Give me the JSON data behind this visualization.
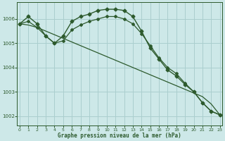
{
  "title": "Graphe pression niveau de la mer (hPa)",
  "background_color": "#cde8e8",
  "grid_color": "#aacece",
  "line_color": "#2d5a2d",
  "x_ticks": [
    0,
    1,
    2,
    3,
    4,
    5,
    6,
    7,
    8,
    9,
    10,
    11,
    12,
    13,
    14,
    15,
    16,
    17,
    18,
    19,
    20,
    21,
    22,
    23
  ],
  "y_ticks": [
    1002,
    1003,
    1004,
    1005,
    1006
  ],
  "ylim": [
    1001.6,
    1006.7
  ],
  "xlim": [
    -0.3,
    23.3
  ],
  "series": [
    {
      "x": [
        0,
        1,
        2,
        3,
        4,
        5,
        6,
        7,
        8,
        9,
        10,
        11,
        12,
        13,
        14,
        15,
        16,
        17,
        18,
        19,
        20,
        21,
        22,
        23
      ],
      "y": [
        1005.8,
        1006.1,
        1005.8,
        1005.3,
        1005.0,
        1005.3,
        1005.9,
        1006.1,
        1006.2,
        1006.35,
        1006.4,
        1006.4,
        1006.35,
        1006.1,
        1005.5,
        1004.8,
        1004.35,
        1003.9,
        1003.65,
        1003.3,
        1003.0,
        1002.55,
        1002.2,
        1002.05
      ],
      "marker": "D",
      "linewidth": 1.0,
      "markersize": 2.5
    },
    {
      "x": [
        0,
        1,
        2,
        3,
        4,
        5,
        6,
        7,
        8,
        9,
        10,
        11,
        12,
        13,
        14,
        15,
        16,
        17,
        18,
        19,
        20,
        21,
        22,
        23
      ],
      "y": [
        1005.8,
        1005.75,
        1005.65,
        1005.5,
        1005.35,
        1005.2,
        1005.05,
        1004.9,
        1004.75,
        1004.6,
        1004.45,
        1004.3,
        1004.15,
        1004.0,
        1003.85,
        1003.7,
        1003.55,
        1003.4,
        1003.25,
        1003.1,
        1002.95,
        1002.8,
        1002.5,
        1002.05
      ],
      "marker": null,
      "linewidth": 0.9,
      "markersize": 0
    },
    {
      "x": [
        0,
        1,
        2,
        3,
        4,
        5,
        6,
        7,
        8,
        9,
        10,
        11,
        12,
        13,
        14,
        15,
        16,
        17,
        18,
        19,
        20,
        21,
        22,
        23
      ],
      "y": [
        1005.8,
        1005.9,
        1005.65,
        1005.3,
        1005.0,
        1005.1,
        1005.55,
        1005.75,
        1005.9,
        1006.0,
        1006.1,
        1006.1,
        1006.0,
        1005.8,
        1005.4,
        1004.9,
        1004.4,
        1004.0,
        1003.75,
        1003.35,
        1003.0,
        1002.55,
        1002.2,
        1002.05
      ],
      "marker": "P",
      "linewidth": 0.9,
      "markersize": 2.5
    }
  ]
}
